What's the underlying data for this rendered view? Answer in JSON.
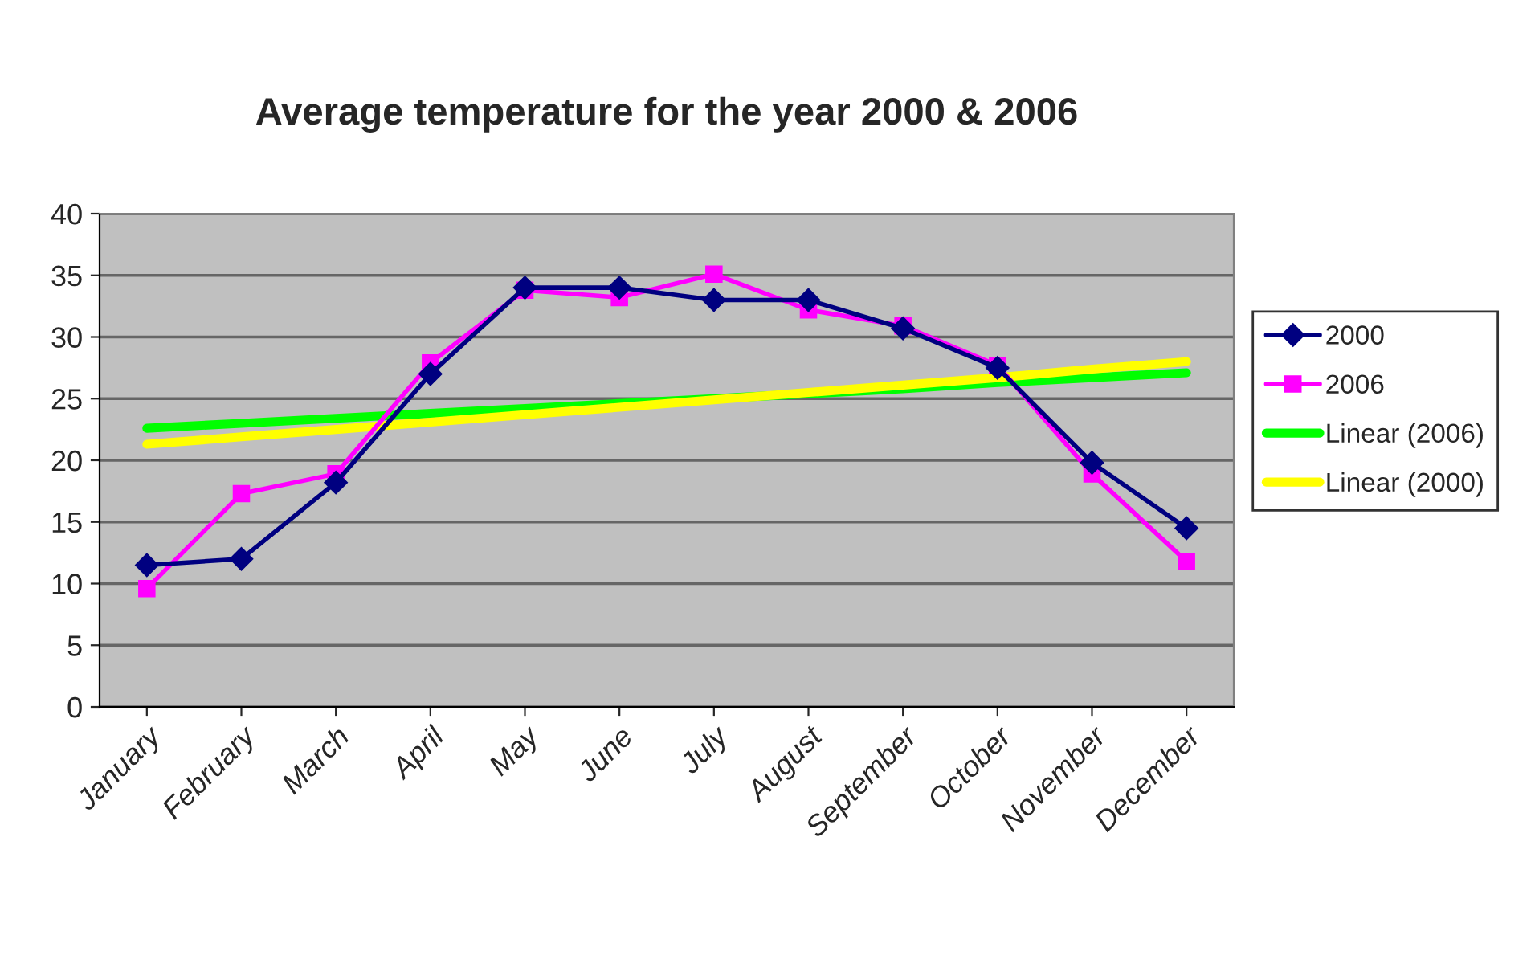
{
  "chart_data": {
    "type": "line",
    "title": "Average temperature for the year 2000 & 2006",
    "categories": [
      "January",
      "February",
      "March",
      "April",
      "May",
      "June",
      "July",
      "August",
      "September",
      "October",
      "November",
      "December"
    ],
    "series": [
      {
        "name": "2000",
        "color": "#000080",
        "marker": "diamond",
        "values": [
          11.5,
          12,
          18.2,
          27,
          34,
          34,
          33,
          33,
          30.7,
          27.5,
          19.8,
          14.5
        ]
      },
      {
        "name": "2006",
        "color": "#ff00ff",
        "marker": "square",
        "values": [
          9.6,
          17.3,
          18.9,
          27.9,
          33.8,
          33.2,
          35.1,
          32.2,
          30.9,
          27.7,
          18.9,
          11.8
        ]
      },
      {
        "name": "Linear (2006)",
        "color": "#00ff00",
        "marker": "none",
        "values": [
          22.6,
          23.0,
          23.4,
          23.8,
          24.2,
          24.6,
          25.0,
          25.4,
          25.8,
          26.3,
          26.7,
          27.1
        ]
      },
      {
        "name": "Linear (2000)",
        "color": "#ffff00",
        "marker": "none",
        "values": [
          21.3,
          21.9,
          22.5,
          23.1,
          23.7,
          24.3,
          24.9,
          25.5,
          26.1,
          26.7,
          27.4,
          28.0
        ]
      }
    ],
    "ylim": [
      0,
      40
    ],
    "yticks": [
      0,
      5,
      10,
      15,
      20,
      25,
      30,
      35,
      40
    ],
    "grid": "y",
    "legend": "right"
  }
}
